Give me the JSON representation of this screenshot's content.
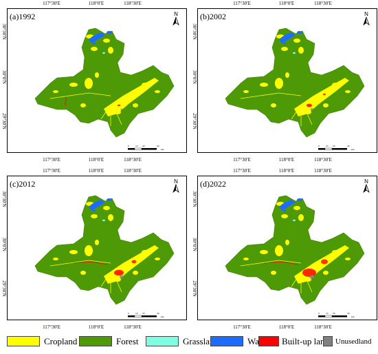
{
  "panels": [
    {
      "label": "(a)1992"
    },
    {
      "label": "(b)2002"
    },
    {
      "label": "(c)2012"
    },
    {
      "label": "(d)2022"
    }
  ],
  "lon_ticks": [
    "117°30′E",
    "118°0′E",
    "118°30′E"
  ],
  "lat_ticks": [
    "30°30′N",
    "30°0′N",
    "29°30′N"
  ],
  "north_label": "N",
  "scale": {
    "values": [
      "0",
      "10",
      "20",
      "40"
    ],
    "unit": "km"
  },
  "legend": [
    {
      "name": "Cropland",
      "color": "#ffff00"
    },
    {
      "name": "Forest",
      "color": "#4e9a06"
    },
    {
      "name": "Grassland",
      "color": "#80ffe0"
    },
    {
      "name": "Water",
      "color": "#1e6cff"
    },
    {
      "name": "Built-up land",
      "color": "#ff0000"
    },
    {
      "name": "Unusedland",
      "color": "#808080"
    }
  ]
}
